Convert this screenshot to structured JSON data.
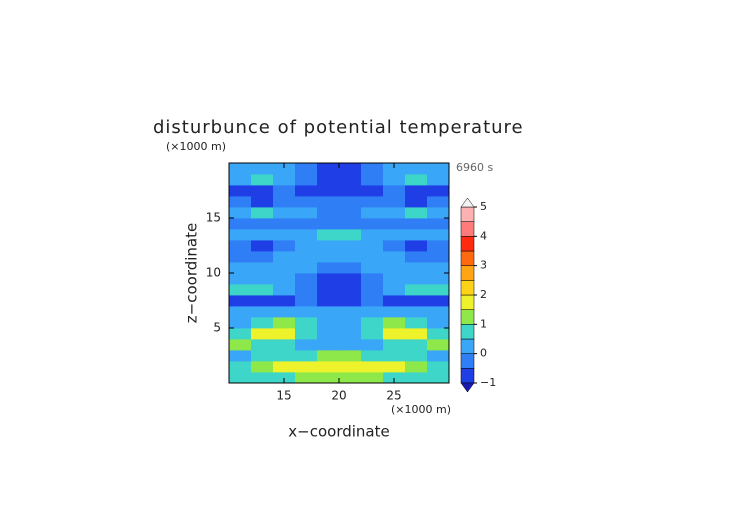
{
  "chart_data": {
    "type": "contour",
    "title": "disturbunce of potential temperature",
    "y_unit_label": "(×1000 m)",
    "x_unit_label": "(×1000 m)",
    "time_label": "6960 s",
    "xlabel": "x−coordinate",
    "ylabel": "z−coordinate",
    "xlim": [
      10,
      30
    ],
    "ylim": [
      0,
      20
    ],
    "xticks": [
      15,
      20,
      25
    ],
    "yticks": [
      5,
      10,
      15
    ],
    "x": [
      11,
      13,
      15,
      17,
      19,
      21,
      23,
      25,
      27,
      29
    ],
    "y": [
      0.5,
      1.5,
      2.5,
      3.5,
      4.5,
      5.5,
      6.5,
      7.5,
      8.5,
      9.5,
      10.5,
      11.5,
      12.5,
      13.5,
      14.5,
      15.5,
      16.5,
      17.5,
      18.5,
      19.5
    ],
    "values": [
      [
        0.5,
        0.6,
        0.8,
        1,
        1.2,
        1.2,
        1,
        0.8,
        0.6,
        0.5
      ],
      [
        0.8,
        1.2,
        1.5,
        1.6,
        1.6,
        1.6,
        1.6,
        1.5,
        1.2,
        0.8
      ],
      [
        0.3,
        0.5,
        0.8,
        0.9,
        1,
        1,
        0.9,
        0.8,
        0.5,
        0.3
      ],
      [
        1.2,
        0.8,
        0.5,
        0.3,
        0.4,
        0.4,
        0.3,
        0.5,
        0.8,
        1.2
      ],
      [
        0.8,
        1.5,
        1.7,
        0.8,
        0.4,
        0.4,
        0.8,
        1.7,
        1.5,
        0.8
      ],
      [
        0.3,
        0.9,
        1,
        0.5,
        0.2,
        0.2,
        0.5,
        1,
        0.9,
        0.3
      ],
      [
        0.2,
        0.3,
        0.2,
        0.3,
        0.2,
        0.2,
        0.3,
        0.2,
        0.3,
        0.2
      ],
      [
        -0.6,
        -0.7,
        -0.6,
        -0.3,
        -0.6,
        -0.6,
        -0.3,
        -0.6,
        -0.7,
        -0.6
      ],
      [
        0.6,
        0.5,
        0.2,
        -0.3,
        -0.7,
        -0.7,
        -0.3,
        0.2,
        0.5,
        0.6
      ],
      [
        0.2,
        0.2,
        0.1,
        -0.4,
        -0.7,
        -0.7,
        -0.4,
        0.1,
        0.2,
        0.2
      ],
      [
        0,
        0,
        0.1,
        0,
        -0.3,
        -0.3,
        0,
        0.1,
        0,
        0
      ],
      [
        -0.3,
        -0.1,
        0,
        0.1,
        0.1,
        0.1,
        0.1,
        0,
        -0.1,
        -0.3
      ],
      [
        -0.3,
        -0.7,
        -0.2,
        0,
        0.2,
        0.2,
        0,
        -0.2,
        -0.7,
        -0.3
      ],
      [
        0,
        0,
        0.1,
        0.3,
        0.5,
        0.5,
        0.3,
        0.1,
        0,
        0
      ],
      [
        -0.3,
        -0.2,
        -0.2,
        -0.3,
        -0.3,
        -0.3,
        -0.3,
        -0.2,
        -0.2,
        -0.3
      ],
      [
        0.4,
        0.8,
        0.3,
        0,
        -0.1,
        -0.1,
        0,
        0.3,
        0.8,
        0.4
      ],
      [
        -0.5,
        -0.6,
        -0.4,
        -0.3,
        -0.3,
        -0.3,
        -0.3,
        -0.4,
        -0.6,
        -0.5
      ],
      [
        -0.7,
        -0.6,
        -0.5,
        -0.7,
        -0.8,
        -0.8,
        -0.7,
        -0.5,
        -0.6,
        -0.7
      ],
      [
        0.3,
        0.6,
        0.4,
        -0.3,
        -0.8,
        -0.8,
        -0.3,
        0.4,
        0.6,
        0.3
      ],
      [
        0,
        0.2,
        0.1,
        -0.5,
        -0.7,
        -0.7,
        -0.5,
        0.1,
        0.2,
        0
      ]
    ],
    "levels": [
      -1,
      -0.5,
      0,
      0.5,
      1,
      1.5,
      2,
      2.5,
      3,
      3.5,
      4,
      4.5,
      5
    ],
    "colors": [
      "#1f3ee6",
      "#2f7ef5",
      "#3aa6f7",
      "#3dd6c8",
      "#8fe84a",
      "#eef22a",
      "#ffd21a",
      "#ffa412",
      "#ff6a10",
      "#ff2a10",
      "#ff7a7a",
      "#ffb0b0"
    ],
    "under_color": "#1a1ab0",
    "over_color": "#f4f4f4",
    "cbar_ticks": [
      {
        "value": -1,
        "label": "−1"
      },
      0,
      1,
      2,
      3,
      4,
      5
    ]
  }
}
